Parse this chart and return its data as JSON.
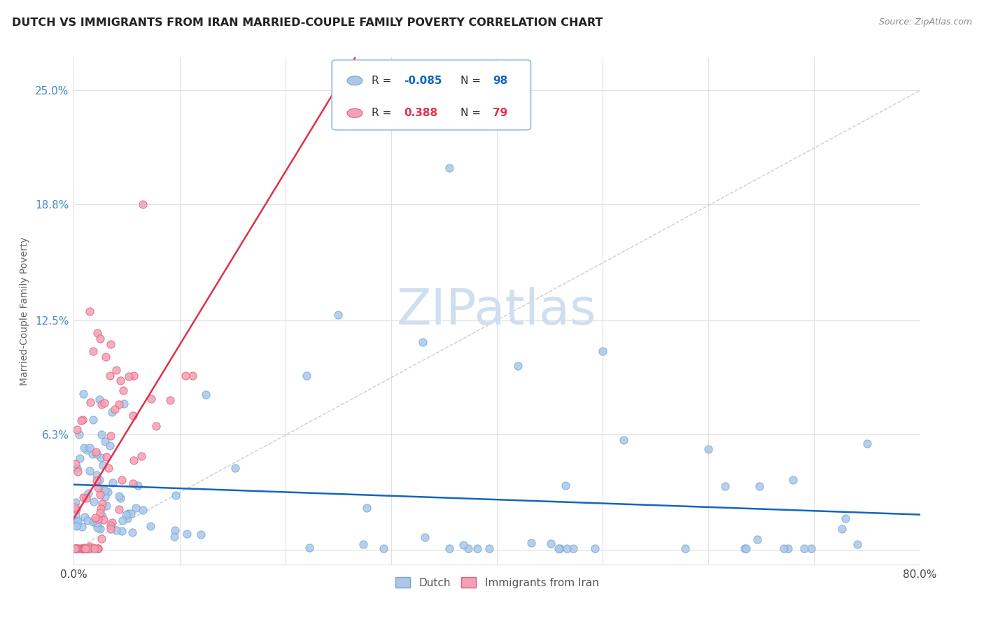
{
  "title": "DUTCH VS IMMIGRANTS FROM IRAN MARRIED-COUPLE FAMILY POVERTY CORRELATION CHART",
  "source": "Source: ZipAtlas.com",
  "ylabel": "Married-Couple Family Poverty",
  "xmin": 0.0,
  "xmax": 0.8,
  "ymin": -0.008,
  "ymax": 0.268,
  "yticks": [
    0.0,
    0.063,
    0.125,
    0.188,
    0.25
  ],
  "ytick_labels": [
    "",
    "6.3%",
    "12.5%",
    "18.8%",
    "25.0%"
  ],
  "xticks": [
    0.0,
    0.1,
    0.2,
    0.3,
    0.4,
    0.5,
    0.6,
    0.7,
    0.8
  ],
  "xtick_labels": [
    "0.0%",
    "",
    "",
    "",
    "",
    "",
    "",
    "",
    "80.0%"
  ],
  "dutch_R": -0.085,
  "dutch_N": 98,
  "iran_R": 0.388,
  "iran_N": 79,
  "dutch_color": "#aec6e8",
  "dutch_edge_color": "#6aaad8",
  "iran_color": "#f4a0b5",
  "iran_edge_color": "#e0607a",
  "dutch_line_color": "#1565c0",
  "iran_line_color": "#e0304a",
  "ref_line_color": "#c8c8c8",
  "background_color": "#ffffff",
  "grid_color": "#e0e0e0",
  "watermark_color": "#d0dff0",
  "legend_border_color": "#90bce0"
}
